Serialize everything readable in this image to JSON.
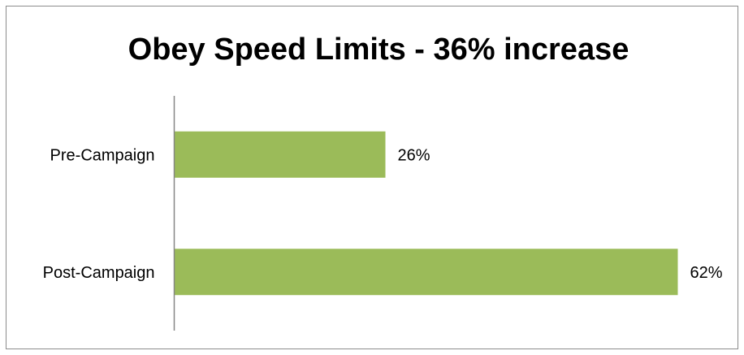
{
  "chart_data": {
    "type": "bar",
    "orientation": "horizontal",
    "title": "Obey Speed Limits - 36% increase",
    "categories": [
      "Pre-Campaign",
      "Post-Campaign"
    ],
    "values": [
      26,
      62
    ],
    "data_labels": [
      "26%",
      "62%"
    ],
    "value_unit": "%",
    "xlim": [
      0,
      70
    ],
    "grid": false,
    "legend": "none",
    "bar_color": "#9BBB59"
  }
}
